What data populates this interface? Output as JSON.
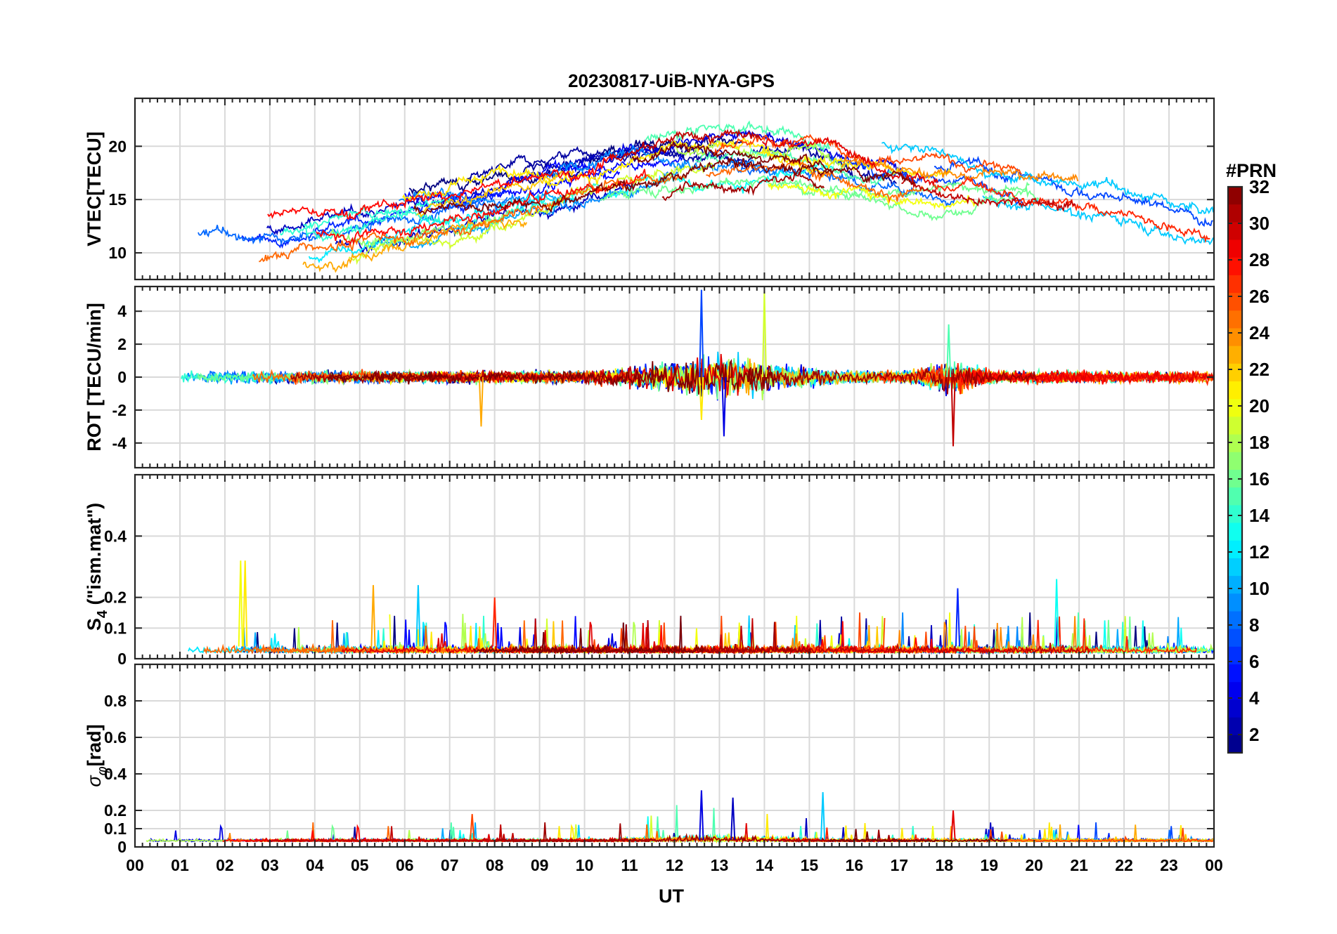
{
  "chart_data": {
    "type": "line",
    "title": "20230817-UiB-NYA-GPS",
    "xlabel": "UT",
    "x_tick_labels": [
      "00",
      "01",
      "02",
      "03",
      "04",
      "05",
      "06",
      "07",
      "08",
      "09",
      "10",
      "11",
      "12",
      "13",
      "14",
      "15",
      "16",
      "17",
      "18",
      "19",
      "20",
      "21",
      "22",
      "23",
      "00"
    ],
    "xlim_hours": [
      0,
      24
    ],
    "grid": true,
    "colorbar": {
      "title": "#PRN",
      "range": [
        1,
        32
      ],
      "ticks": [
        "2",
        "4",
        "6",
        "8",
        "10",
        "12",
        "14",
        "16",
        "18",
        "20",
        "22",
        "24",
        "26",
        "28",
        "30",
        "32"
      ],
      "colormap": "jet",
      "placement": "right"
    },
    "panels": [
      {
        "name": "vtec",
        "ylabel": "VTEC[TECU]",
        "ylim": [
          7.5,
          24.5
        ],
        "yticks": [
          10,
          15,
          20
        ],
        "ytick_labels": [
          "10",
          "15",
          "20"
        ],
        "series_note": "one line per PRN satellite, values approx 8 to 24 TECU; peak near 12-14 UT"
      },
      {
        "name": "rot",
        "ylabel": "ROT [TECU/min]",
        "ylim": [
          -5.5,
          5.5
        ],
        "yticks": [
          -4,
          -2,
          0,
          2,
          4
        ],
        "ytick_labels": [
          "-4",
          "-2",
          "0",
          "2",
          "4"
        ],
        "series_note": "fluctuations around 0, max excursions approx +5 near 12.6 UT and 14.0 UT, approx -4 near 18.2 UT"
      },
      {
        "name": "s4",
        "ylabel_main": "S",
        "ylabel_sub": "4",
        "ylabel_rest": " (\"ism.mat\")",
        "ylim": [
          0,
          0.6
        ],
        "yticks": [
          0,
          0.1,
          0.2,
          0.4
        ],
        "ytick_labels": [
          "0",
          "0.1",
          "0.2",
          "0.4"
        ],
        "series_note": "mostly below 0.1, spikes up to approx 0.32 near 2.4 UT"
      },
      {
        "name": "sigma_phi",
        "ylabel_main": "σ",
        "ylabel_sub": "φ",
        "ylabel_rest": "[rad]",
        "ylim": [
          0,
          1.0
        ],
        "yticks": [
          0,
          0.1,
          0.2,
          0.4,
          0.6,
          0.8
        ],
        "ytick_labels": [
          "0",
          "0.1",
          "0.2",
          "0.4",
          "0.6",
          "0.8"
        ],
        "series_note": "mostly below 0.1, spikes up to approx 0.3 near 12.6 UT and 15.3 UT"
      }
    ]
  }
}
